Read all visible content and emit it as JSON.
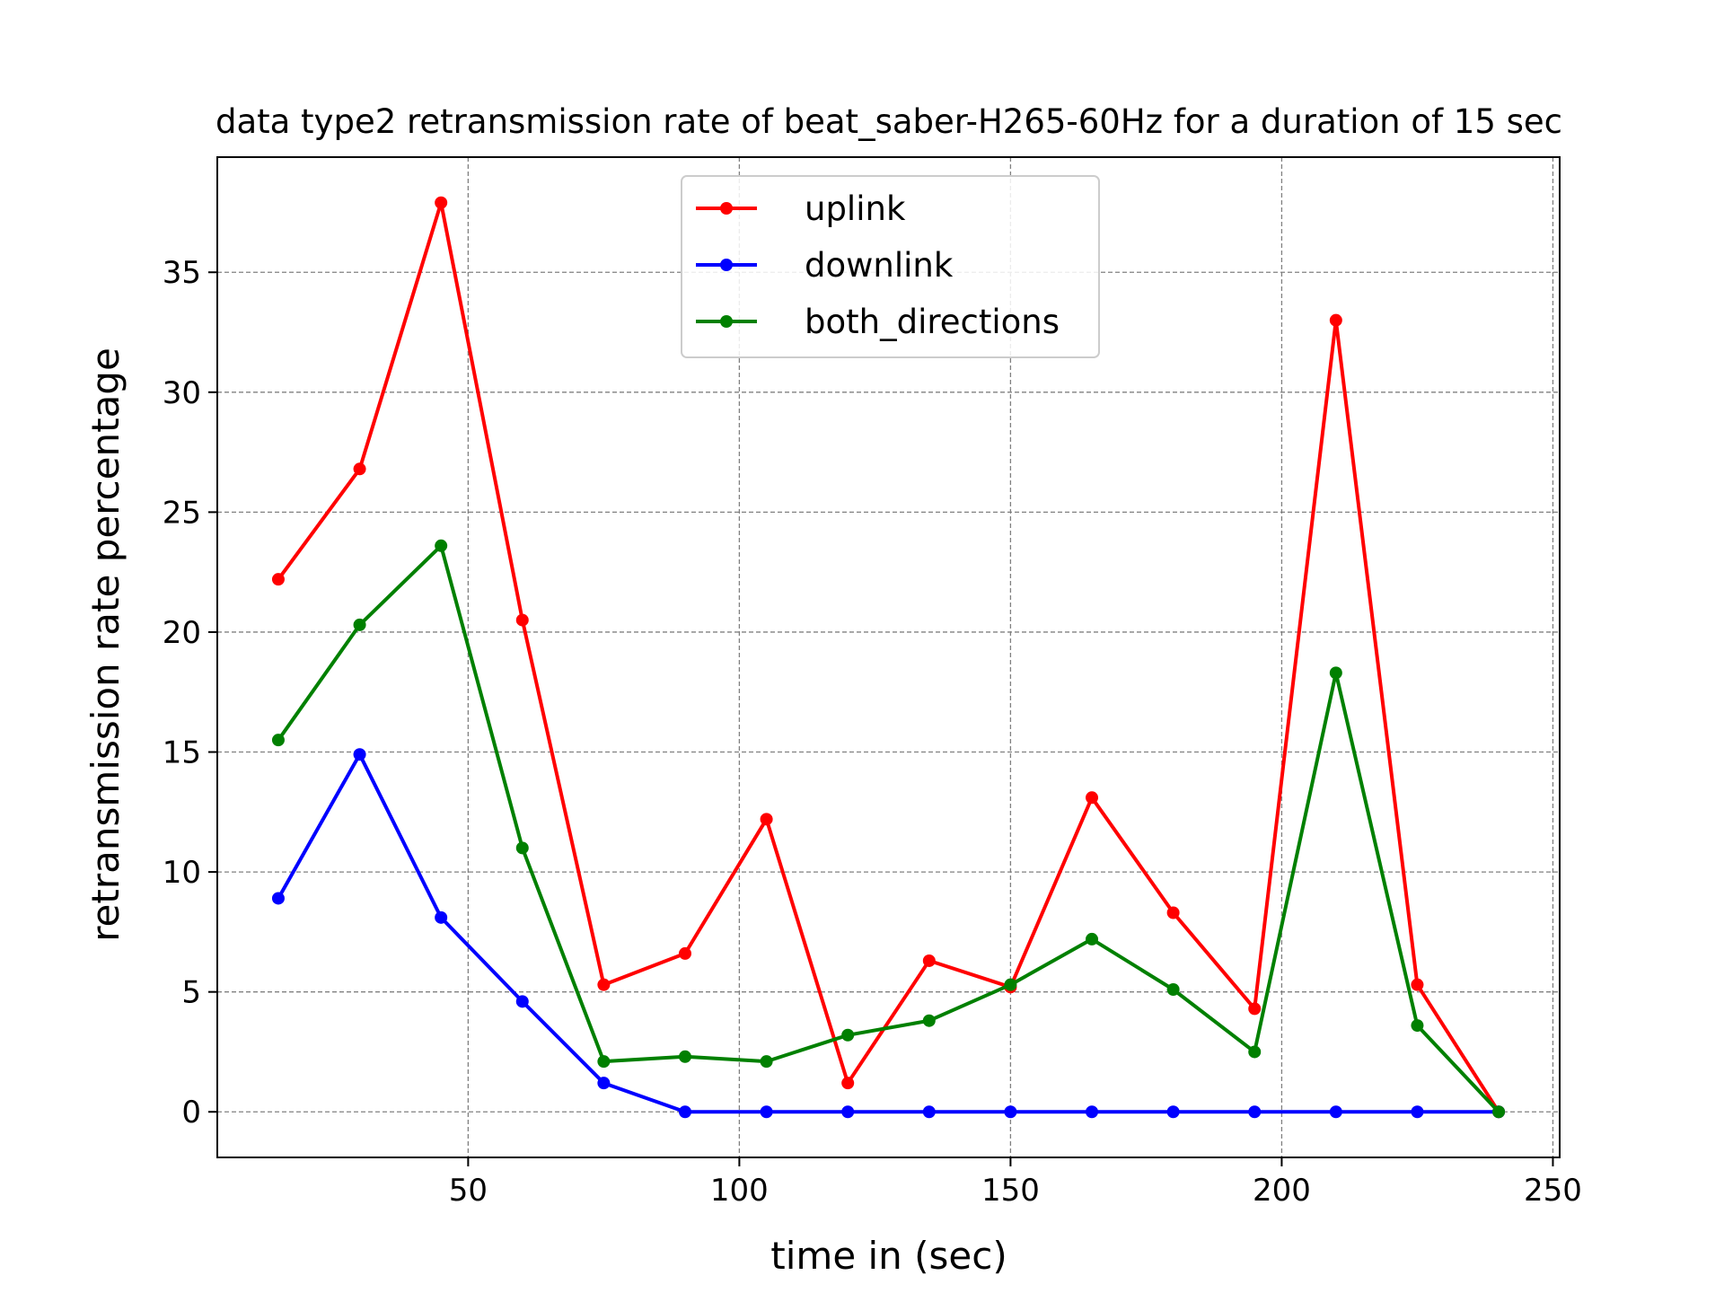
{
  "chart_data": {
    "type": "line",
    "title": "data type2 retransmission rate of beat_saber-H265-60Hz for a duration of 15 sec",
    "xlabel": "time in (sec)",
    "ylabel": "retransmission rate percentage",
    "xlim": [
      3.75,
      251.25
    ],
    "ylim": [
      -1.9,
      39.8
    ],
    "xticks": [
      50,
      100,
      150,
      200,
      250
    ],
    "yticks": [
      0,
      5,
      10,
      15,
      20,
      25,
      30,
      35
    ],
    "grid": true,
    "legend_position": "upper-center",
    "x": [
      15,
      30,
      45,
      60,
      75,
      90,
      105,
      120,
      135,
      150,
      165,
      180,
      195,
      210,
      225,
      240
    ],
    "series": [
      {
        "name": "uplink",
        "color": "#ff0000",
        "values": [
          22.2,
          26.8,
          37.9,
          20.5,
          5.3,
          6.6,
          12.2,
          1.2,
          6.3,
          5.2,
          13.1,
          8.3,
          4.3,
          33.0,
          5.3,
          0.0
        ]
      },
      {
        "name": "downlink",
        "color": "#0000ff",
        "values": [
          8.9,
          14.9,
          8.1,
          4.6,
          1.2,
          0.0,
          0.0,
          0.0,
          0.0,
          0.0,
          0.0,
          0.0,
          0.0,
          0.0,
          0.0,
          0.0
        ]
      },
      {
        "name": "both_directions",
        "color": "#008000",
        "values": [
          15.5,
          20.3,
          23.6,
          11.0,
          2.1,
          2.3,
          2.1,
          3.2,
          3.8,
          5.3,
          7.2,
          5.1,
          2.5,
          18.3,
          3.6,
          0.0
        ]
      }
    ]
  }
}
